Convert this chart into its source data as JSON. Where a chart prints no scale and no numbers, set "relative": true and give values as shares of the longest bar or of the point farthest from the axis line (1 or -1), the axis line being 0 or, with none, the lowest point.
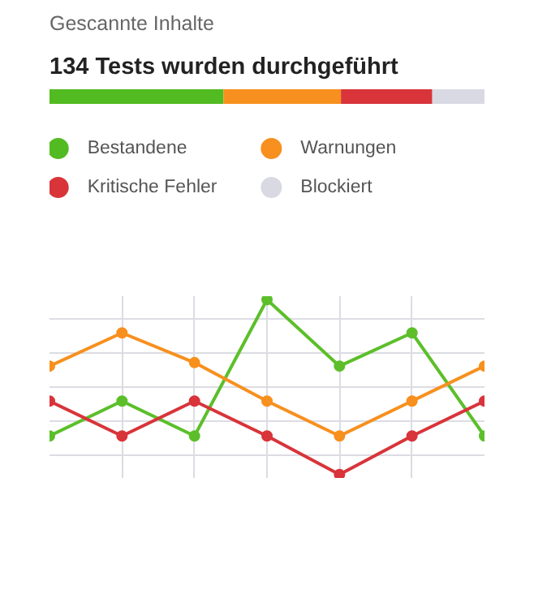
{
  "chart_data": [
    {
      "type": "bar",
      "title": "Gescannte Inhalte",
      "subtitle": "134 Tests wurden durchgeführt",
      "orientation": "horizontal",
      "stacked": true,
      "relative": true,
      "categories": [
        null
      ],
      "legend": "bottom",
      "series": [
        {
          "name": "Bestandene",
          "color": "#52bb21",
          "values": [
            0.4
          ]
        },
        {
          "name": "Warnungen",
          "color": "#f7901e",
          "values": [
            0.27
          ]
        },
        {
          "name": "Kritische Fehler",
          "color": "#d8343a",
          "values": [
            0.21
          ]
        },
        {
          "name": "Blockiert",
          "color": "#d9d9e3",
          "values": [
            0.12
          ]
        }
      ]
    },
    {
      "type": "line",
      "relative": true,
      "categories": [
        null,
        null,
        null,
        null,
        null,
        null,
        null
      ],
      "marker": "circle",
      "grid": true,
      "series": [
        {
          "color": "#5cbf2a",
          "values": [
            0.22,
            0.42,
            0.22,
            1.0,
            0.62,
            0.81,
            0.22
          ]
        },
        {
          "color": "#f7901e",
          "values": [
            0.62,
            0.81,
            0.64,
            0.42,
            0.22,
            0.42,
            0.62
          ]
        },
        {
          "color": "#d8343a",
          "values": [
            0.42,
            0.22,
            0.42,
            0.22,
            0,
            0.22,
            0.42
          ]
        }
      ]
    }
  ]
}
